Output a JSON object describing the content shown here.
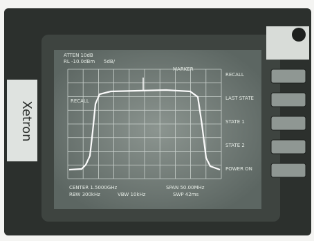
{
  "sticker": {
    "brand": "Xetron"
  },
  "screen": {
    "header": [
      "ATTEN 10dB",
      "RL -10.0dBm",
      "5dB/",
      "MARKER"
    ],
    "trace_label": "RECALL",
    "footer": [
      "CENTER 1.5000GHz",
      "SPAN 50.00MHz",
      "RBW 300kHz",
      "VBW 10kHz",
      "SWP 42ms"
    ]
  },
  "softkeys": [
    "RECALL",
    "LAST STATE",
    "STATE 1",
    "STATE 2",
    "POWER ON"
  ]
}
